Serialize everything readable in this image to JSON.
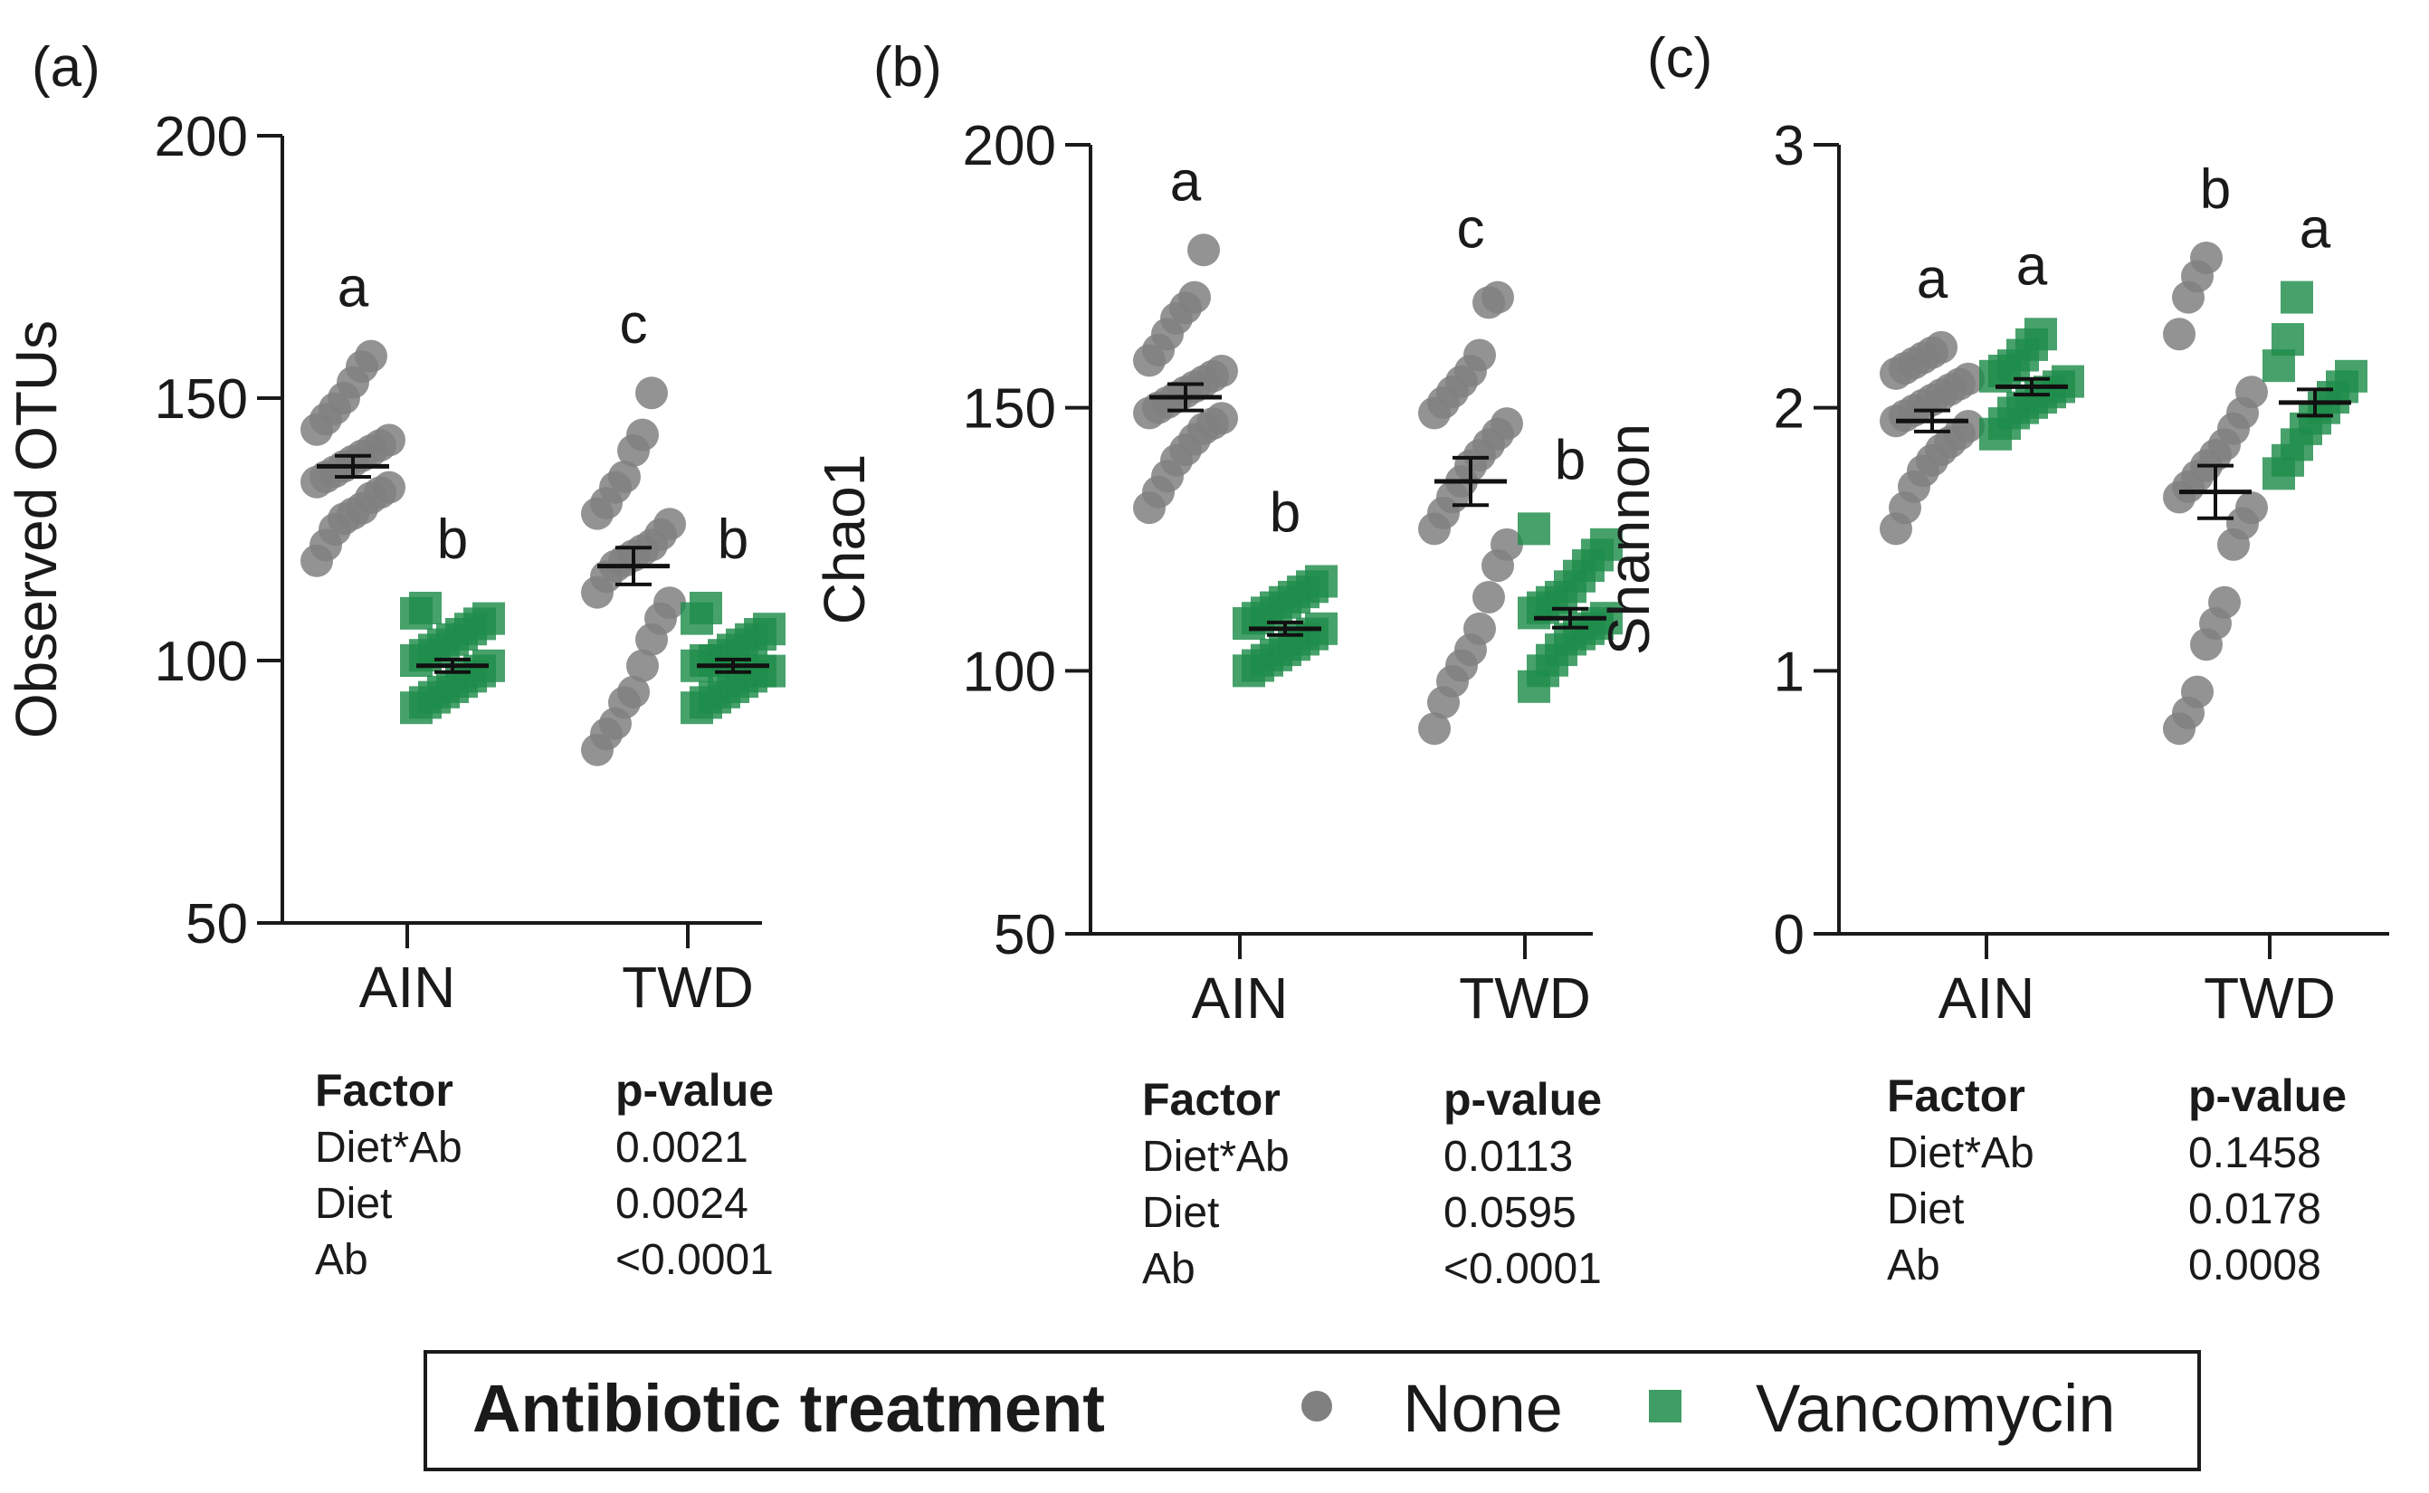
{
  "colors": {
    "none": "#808080",
    "vancomycin": "#1f8c4a",
    "axis": "#1a1a1a"
  },
  "legend": {
    "title": "Antibiotic treatment",
    "entries": [
      {
        "label": "None",
        "marker": "circle"
      },
      {
        "label": "Vancomycin",
        "marker": "square"
      }
    ]
  },
  "chart_data": [
    {
      "type": "scatter",
      "panel": "(a)",
      "ylabel": "Observed OTUs",
      "ylim": [
        50,
        200
      ],
      "yticks": [
        50,
        100,
        150,
        200
      ],
      "categories": [
        "AIN",
        "TWD"
      ],
      "series": [
        {
          "name": "None",
          "points": [
            [
              119,
              122,
              125,
              127,
              128,
              129,
              131,
              132,
              133,
              134,
              135,
              136,
              137,
              138,
              139,
              140,
              141,
              142,
              144,
              146,
              148,
              150,
              153,
              156,
              158
            ],
            [
              83,
              86,
              88,
              92,
              94,
              99,
              104,
              108,
              111,
              113,
              116,
              118,
              119,
              120,
              121,
              122,
              124,
              126,
              128,
              130,
              133,
              135,
              140,
              143,
              151
            ]
          ],
          "mean": [
            137,
            118
          ],
          "sem": [
            2,
            3.5
          ],
          "letters": [
            "a",
            "c"
          ]
        },
        {
          "name": "Vancomycin",
          "points": [
            [
              91,
              92,
              93,
              94,
              95,
              96,
              97,
              98,
              99,
              100,
              101,
              102,
              103,
              104,
              105,
              106,
              107,
              108,
              109,
              110
            ],
            [
              91,
              92,
              93,
              94,
              95,
              96,
              97,
              98,
              98,
              99,
              100,
              100,
              101,
              102,
              103,
              104,
              105,
              106,
              108,
              110
            ]
          ],
          "mean": [
            99,
            99
          ],
          "sem": [
            1.2,
            1.2
          ],
          "letters": [
            "b",
            "b"
          ]
        }
      ],
      "table": {
        "head": [
          "Factor",
          "p-value"
        ],
        "rows": [
          [
            "Diet*Ab",
            "0.0021"
          ],
          [
            "Diet",
            "0.0024"
          ],
          [
            "Ab",
            "<0.0001"
          ]
        ]
      }
    },
    {
      "type": "scatter",
      "panel": "(b)",
      "ylabel": "Chao1",
      "ylim": [
        50,
        200
      ],
      "yticks": [
        50,
        100,
        150,
        200
      ],
      "categories": [
        "AIN",
        "TWD"
      ],
      "series": [
        {
          "name": "None",
          "points": [
            [
              131,
              134,
              137,
              140,
              142,
              144,
              146,
              147,
              148,
              149,
              150,
              151,
              152,
              153,
              154,
              155,
              156,
              157,
              159,
              161,
              164,
              167,
              169,
              171,
              180
            ],
            [
              89,
              94,
              98,
              101,
              104,
              108,
              114,
              120,
              124,
              127,
              130,
              133,
              136,
              139,
              141,
              143,
              145,
              147,
              149,
              151,
              153,
              155,
              157,
              160,
              170,
              171
            ]
          ],
          "mean": [
            152,
            136
          ],
          "sem": [
            2.5,
            4.5
          ],
          "letters": [
            "a",
            "c"
          ]
        },
        {
          "name": "Vancomycin",
          "points": [
            [
              100,
              101,
              102,
              103,
              104,
              105,
              106,
              107,
              108,
              109,
              110,
              111,
              112,
              113,
              114,
              115,
              116,
              117
            ],
            [
              97,
              100,
              102,
              104,
              106,
              107,
              108,
              109,
              110,
              111,
              112,
              113,
              114,
              116,
              118,
              120,
              122,
              124,
              127
            ]
          ],
          "mean": [
            108,
            110
          ],
          "sem": [
            1.2,
            1.8
          ],
          "letters": [
            "b",
            "b"
          ]
        }
      ],
      "table": {
        "head": [
          "Factor",
          "p-value"
        ],
        "rows": [
          [
            "Diet*Ab",
            "0.0113"
          ],
          [
            "Diet",
            "0.0595"
          ],
          [
            "Ab",
            "<0.0001"
          ]
        ]
      }
    },
    {
      "type": "scatter",
      "panel": "(c)",
      "ylabel": "Shannon",
      "ylim": [
        0,
        3
      ],
      "yticks": [
        0,
        1,
        2,
        3
      ],
      "categories": [
        "AIN",
        "TWD"
      ],
      "series": [
        {
          "name": "None",
          "points": [
            [
              1.54,
              1.62,
              1.7,
              1.76,
              1.8,
              1.84,
              1.87,
              1.9,
              1.93,
              1.95,
              1.97,
              1.99,
              2.01,
              2.03,
              2.05,
              2.07,
              2.09,
              2.11,
              2.13,
              2.15,
              2.17,
              2.19,
              2.21,
              2.23
            ],
            [
              0.78,
              0.84,
              0.92,
              1.1,
              1.18,
              1.26,
              1.48,
              1.56,
              1.62,
              1.66,
              1.7,
              1.74,
              1.78,
              1.82,
              1.86,
              1.92,
              1.98,
              2.06,
              2.28,
              2.42,
              2.5,
              2.57
            ]
          ],
          "mean": [
            1.95,
            1.68
          ],
          "sem": [
            0.04,
            0.1
          ],
          "letters": [
            "a",
            "b"
          ]
        },
        {
          "name": "Vancomycin",
          "points": [
            [
              1.9,
              1.94,
              1.98,
              2.0,
              2.02,
              2.04,
              2.06,
              2.08,
              2.1,
              2.12,
              2.14,
              2.16,
              2.2,
              2.24,
              2.28
            ],
            [
              1.75,
              1.8,
              1.86,
              1.92,
              1.96,
              2.0,
              2.04,
              2.08,
              2.12,
              2.16,
              2.26,
              2.42
            ]
          ],
          "mean": [
            2.08,
            2.02
          ],
          "sem": [
            0.03,
            0.05
          ],
          "letters": [
            "a",
            "a"
          ]
        }
      ],
      "table": {
        "head": [
          "Factor",
          "p-value"
        ],
        "rows": [
          [
            "Diet*Ab",
            "0.1458"
          ],
          [
            "Diet",
            "0.0178"
          ],
          [
            "Ab",
            "0.0008"
          ]
        ]
      }
    }
  ]
}
